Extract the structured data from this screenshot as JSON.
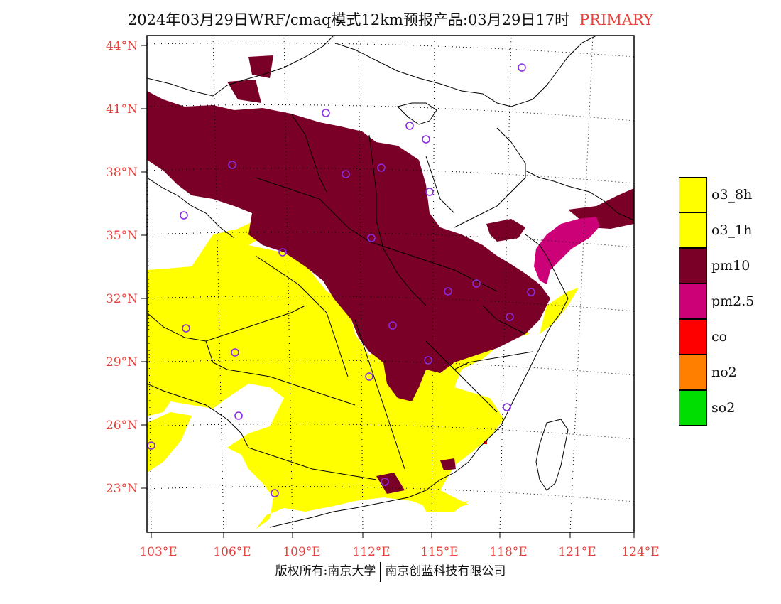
{
  "title": {
    "main": "2024年03月29日WRF/cmaq模式12km预报产品:03月29日17时",
    "tag": "PRIMARY"
  },
  "colors": {
    "o3_8h": "#ffff00",
    "o3_1h": "#ffff00",
    "pm10": "#7a0028",
    "pm2_5": "#cc0077",
    "co": "#ff0000",
    "no2": "#ff8000",
    "so2": "#00dd00",
    "axis_label": "#e8403a",
    "station": "#8a2be2"
  },
  "legend": [
    {
      "label": "o3_8h",
      "color": "#ffff00"
    },
    {
      "label": "o3_1h",
      "color": "#ffff00"
    },
    {
      "label": "pm10",
      "color": "#7a0028"
    },
    {
      "label": "pm2.5",
      "color": "#cc0077"
    },
    {
      "label": "co",
      "color": "#ff0000"
    },
    {
      "label": "no2",
      "color": "#ff8000"
    },
    {
      "label": "so2",
      "color": "#00dd00"
    }
  ],
  "latitudes": [
    "44°N",
    "41°N",
    "38°N",
    "35°N",
    "32°N",
    "29°N",
    "26°N",
    "23°N"
  ],
  "longitudes": [
    "103°E",
    "106°E",
    "109°E",
    "112°E",
    "115°E",
    "118°E",
    "121°E",
    "124°E"
  ],
  "footer": {
    "left": "版权所有:南京大学",
    "right": "南京创蓝科技有限公司"
  }
}
